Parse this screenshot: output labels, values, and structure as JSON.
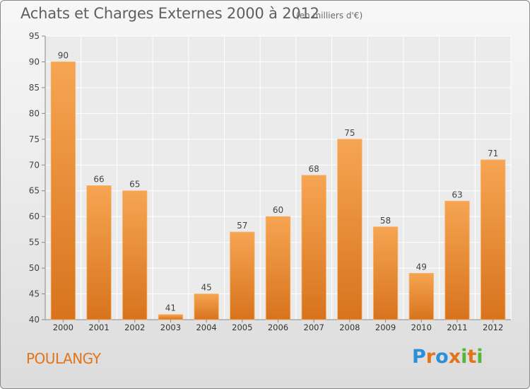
{
  "header": {
    "title": "Achats et Charges Externes 2000 à 2012",
    "unit": "(en milliers d'€)"
  },
  "footer": {
    "place": "POULANGY",
    "logo_text": "Proxiti"
  },
  "colors": {
    "bar_top": "#f6a552",
    "bar_bottom": "#d8731d",
    "place_text": "#e2741c",
    "logo_letters": [
      "#2d8fd8",
      "#e2741c",
      "#2d8fd8",
      "#e2741c",
      "#55b63a",
      "#e2741c",
      "#55b63a"
    ]
  },
  "chart_data": {
    "type": "bar",
    "title": "Achats et Charges Externes 2000 à 2012",
    "subtitle": "(en milliers d'€)",
    "xlabel": "",
    "ylabel": "",
    "categories": [
      "2000",
      "2001",
      "2002",
      "2003",
      "2004",
      "2005",
      "2006",
      "2007",
      "2008",
      "2009",
      "2010",
      "2011",
      "2012"
    ],
    "values": [
      90,
      66,
      65,
      41,
      45,
      57,
      60,
      68,
      75,
      58,
      49,
      63,
      71
    ],
    "ylim": [
      40,
      95
    ],
    "yticks": [
      40,
      45,
      50,
      55,
      60,
      65,
      70,
      75,
      80,
      85,
      90,
      95
    ],
    "grid": true,
    "data_labels": true,
    "legend": "none"
  }
}
